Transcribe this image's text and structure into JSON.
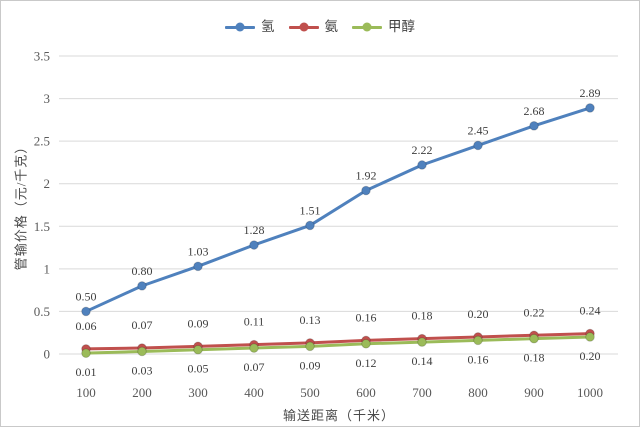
{
  "chart_data": {
    "type": "line",
    "title": "",
    "xlabel": "输送距离（千米）",
    "ylabel": "管输价格（元/千克）",
    "categories": [
      "100",
      "200",
      "300",
      "400",
      "500",
      "600",
      "700",
      "800",
      "900",
      "1000"
    ],
    "series": [
      {
        "name": "氢",
        "color": "#4F81BD",
        "values": [
          0.5,
          0.8,
          1.03,
          1.28,
          1.51,
          1.92,
          2.22,
          2.45,
          2.68,
          2.89
        ],
        "label_position": "above",
        "label_dy": -11
      },
      {
        "name": "氨",
        "color": "#C0504D",
        "values": [
          0.06,
          0.07,
          0.09,
          0.11,
          0.13,
          0.16,
          0.18,
          0.2,
          0.22,
          0.24
        ],
        "label_position": "above",
        "label_dy": -19
      },
      {
        "name": "甲醇",
        "color": "#9BBB59",
        "values": [
          0.01,
          0.03,
          0.05,
          0.07,
          0.09,
          0.12,
          0.14,
          0.16,
          0.18,
          0.2
        ],
        "label_position": "below",
        "label_dy": 23
      }
    ],
    "ylim": [
      0,
      3.5
    ],
    "ytick_step": 0.5,
    "yticks": [
      "0",
      "0.5",
      "1",
      "1.5",
      "2",
      "2.5",
      "3",
      "3.5"
    ],
    "value_label_decimals": 2,
    "grid": true,
    "legend_position": "top",
    "gridline_color": "#d9d9d9",
    "tick_text_color": "#595959",
    "data_label_color": "#3f3f3f",
    "background_color": "#ffffff"
  }
}
